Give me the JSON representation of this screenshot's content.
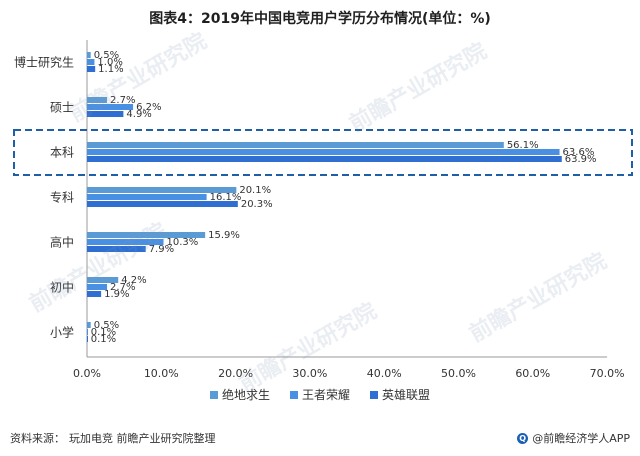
{
  "chart_title": "图表4：2019年中国电竞用户学历分布情况(单位：%)",
  "source": {
    "label": "资料来源：",
    "text": "玩加电竞 前瞻产业研究院整理"
  },
  "brand": "@前瞻经济学人APP",
  "watermark": "前瞻产业研究院",
  "colors": {
    "series": [
      "#5b9bd5",
      "#4a90e2",
      "#2e6fd1"
    ],
    "highlight_border": "#1f5fa8",
    "axis": "#999999"
  },
  "chart_data": {
    "type": "bar",
    "orientation": "horizontal",
    "categories": [
      "博士研究生",
      "硕士",
      "本科",
      "专科",
      "高中",
      "初中",
      "小学"
    ],
    "series": [
      {
        "name": "绝地求生",
        "values": [
          0.5,
          2.7,
          56.1,
          20.1,
          15.9,
          4.2,
          0.5
        ]
      },
      {
        "name": "王者荣耀",
        "values": [
          1.0,
          6.2,
          63.6,
          16.1,
          10.3,
          2.7,
          0.1
        ]
      },
      {
        "name": "英雄联盟",
        "values": [
          1.1,
          4.9,
          63.9,
          20.3,
          7.9,
          1.9,
          0.1
        ]
      }
    ],
    "value_labels": [
      [
        "0.5%",
        "2.7%",
        "56.1%",
        "20.1%",
        "15.9%",
        "4.2%",
        "0.5%"
      ],
      [
        "1.0%",
        "6.2%",
        "63.6%",
        "16.1%",
        "10.3%",
        "2.7%",
        "0.1%"
      ],
      [
        "1.1%",
        "4.9%",
        "63.9%",
        "20.3%",
        "7.9%",
        "1.9%",
        "0.1%"
      ]
    ],
    "xlim": [
      0,
      70
    ],
    "x_ticks": [
      "0.0%",
      "10.0%",
      "20.0%",
      "30.0%",
      "40.0%",
      "50.0%",
      "60.0%",
      "70.0%"
    ],
    "highlighted_category": "本科",
    "legend_position": "bottom",
    "grid": false
  }
}
